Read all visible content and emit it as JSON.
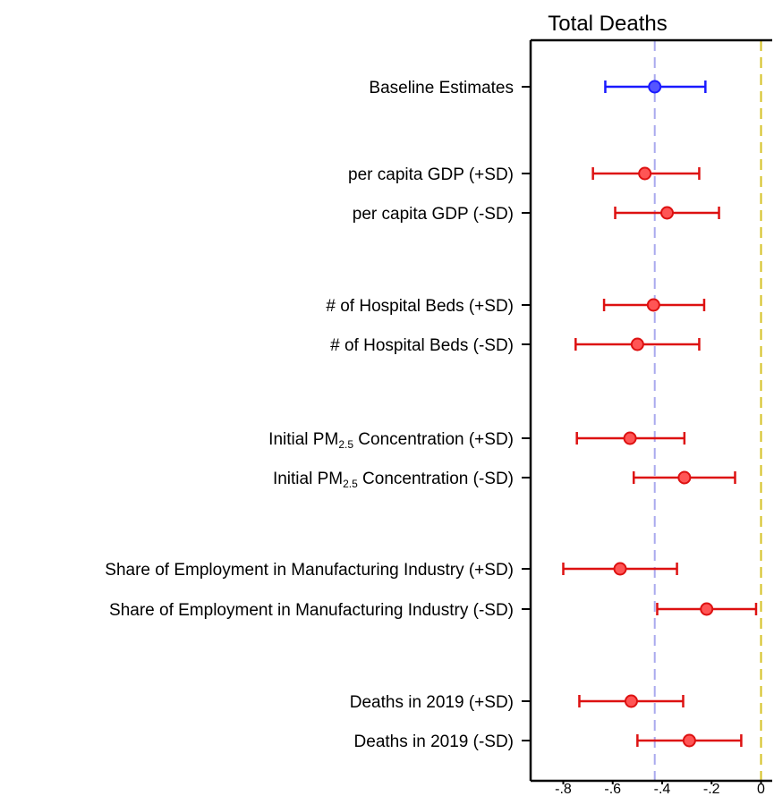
{
  "chart_data": {
    "type": "forest",
    "title": "Total Deaths",
    "xlabel": "",
    "ylabel": "",
    "xlim": [
      -0.87,
      0.02
    ],
    "xticks": [
      -0.8,
      -0.6,
      -0.4,
      -0.2,
      0
    ],
    "xtick_labels": [
      "-.8",
      "-.6",
      "-.4",
      "-.2",
      "0"
    ],
    "baseline_value": -0.43,
    "zero_line": 0,
    "colors": {
      "baseline": "#1a1aff",
      "baseline_point": "#5555ff",
      "estimate": "#dd1111",
      "estimate_point": "#ff5555",
      "baseline_ref_line": "#aaaaee",
      "zero_ref_line": "#d4c020",
      "axis": "#000000"
    },
    "rows": [
      {
        "label": "Baseline Estimates",
        "estimate": -0.43,
        "lower": -0.63,
        "upper": -0.225,
        "group": "baseline"
      },
      {
        "label": "per capita GDP (+SD)",
        "estimate": -0.47,
        "lower": -0.68,
        "upper": -0.25,
        "group": "heterogeneity"
      },
      {
        "label": "per capita GDP (-SD)",
        "estimate": -0.38,
        "lower": -0.59,
        "upper": -0.17,
        "group": "heterogeneity"
      },
      {
        "label": "# of Hospital Beds (+SD)",
        "estimate": -0.435,
        "lower": -0.635,
        "upper": -0.23,
        "group": "heterogeneity"
      },
      {
        "label": "# of Hospital Beds (-SD)",
        "estimate": -0.5,
        "lower": -0.75,
        "upper": -0.25,
        "group": "heterogeneity"
      },
      {
        "label": "Initial PM",
        "label_sub": "2.5",
        "label_suffix": " Concentration (+SD)",
        "estimate": -0.53,
        "lower": -0.745,
        "upper": -0.31,
        "group": "heterogeneity"
      },
      {
        "label": "Initial PM",
        "label_sub": "2.5",
        "label_suffix": " Concentration (-SD)",
        "estimate": -0.31,
        "lower": -0.515,
        "upper": -0.105,
        "group": "heterogeneity"
      },
      {
        "label": "Share of Employment in Manufacturing Industry (+SD)",
        "estimate": -0.57,
        "lower": -0.8,
        "upper": -0.34,
        "group": "heterogeneity"
      },
      {
        "label": "Share of Employment in Manufacturing Industry (-SD)",
        "estimate": -0.22,
        "lower": -0.42,
        "upper": -0.02,
        "group": "heterogeneity"
      },
      {
        "label": "Deaths in 2019 (+SD)",
        "estimate": -0.525,
        "lower": -0.735,
        "upper": -0.315,
        "group": "heterogeneity"
      },
      {
        "label": "Deaths in 2019 (-SD)",
        "estimate": -0.29,
        "lower": -0.5,
        "upper": -0.08,
        "group": "heterogeneity"
      }
    ]
  }
}
